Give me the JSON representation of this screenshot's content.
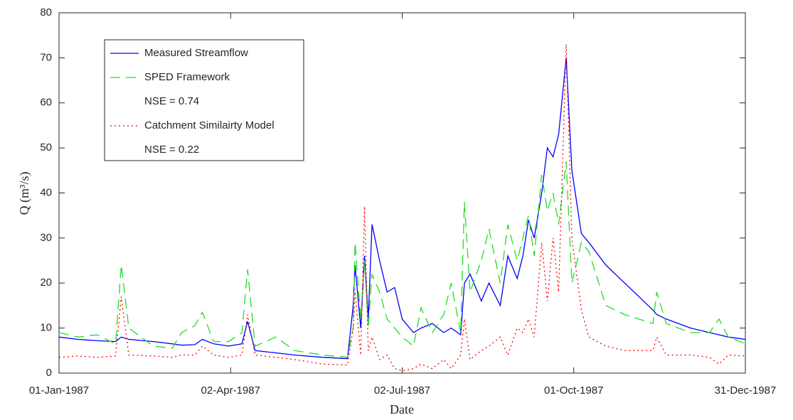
{
  "chart_data": {
    "type": "line",
    "xlabel": "Date",
    "ylabel": "Q (m³/s)",
    "x": [
      "1987-01-01",
      "1987-01-11",
      "1987-01-21",
      "1987-01-31",
      "1987-02-03",
      "1987-02-07",
      "1987-02-20",
      "1987-03-02",
      "1987-03-07",
      "1987-03-14",
      "1987-03-18",
      "1987-03-24",
      "1987-04-01",
      "1987-04-08",
      "1987-04-11",
      "1987-04-15",
      "1987-04-26",
      "1987-05-06",
      "1987-05-21",
      "1987-06-03",
      "1987-06-06",
      "1987-06-07",
      "1987-06-10",
      "1987-06-12",
      "1987-06-14",
      "1987-06-16",
      "1987-06-20",
      "1987-06-24",
      "1987-06-28",
      "1987-07-02",
      "1987-07-08",
      "1987-07-12",
      "1987-07-18",
      "1987-07-24",
      "1987-07-28",
      "1987-08-02",
      "1987-08-04",
      "1987-08-07",
      "1987-08-13",
      "1987-08-17",
      "1987-08-23",
      "1987-08-27",
      "1987-09-01",
      "1987-09-04",
      "1987-09-07",
      "1987-09-10",
      "1987-09-14",
      "1987-09-17",
      "1987-09-20",
      "1987-09-23",
      "1987-09-27",
      "1987-09-30",
      "1987-10-05",
      "1987-10-09",
      "1987-10-18",
      "1987-10-28",
      "1987-11-12",
      "1987-11-14",
      "1987-11-19",
      "1987-12-02",
      "1987-12-12",
      "1987-12-17",
      "1987-12-22",
      "1987-12-31"
    ],
    "series": [
      {
        "name": "Measured Streamflow",
        "color": "#0000ff",
        "dash": "none",
        "values": [
          8,
          7.5,
          7.2,
          7,
          8,
          7.5,
          7,
          6.5,
          6.2,
          6.3,
          7.5,
          6.5,
          6,
          6.5,
          11.5,
          5,
          4.5,
          4,
          3.5,
          3.2,
          15,
          24,
          10,
          26,
          12,
          33,
          25,
          18,
          19,
          12,
          9,
          10,
          11,
          9,
          10,
          8.5,
          20,
          22,
          16,
          20,
          15,
          26,
          21,
          26,
          34,
          30,
          40,
          50,
          48,
          53,
          70,
          45,
          31,
          29,
          24,
          20,
          14,
          13,
          12,
          10,
          9,
          8.5,
          8,
          7.5
        ]
      },
      {
        "name": "SPED Framework",
        "note": "NSE = 0.74",
        "color": "#22dd22",
        "dash": "14 8",
        "values": [
          9,
          8,
          8.5,
          6.5,
          24,
          10,
          6,
          5.5,
          9,
          10.5,
          13.5,
          7,
          7,
          9,
          23,
          6,
          8,
          5,
          4,
          3.5,
          10,
          29,
          12,
          25,
          10,
          22,
          18,
          12,
          10,
          8,
          6,
          14.5,
          9,
          13,
          20,
          9,
          38,
          18,
          25,
          32,
          20,
          33,
          25,
          30,
          35,
          26,
          44,
          36,
          40,
          33,
          47,
          20,
          29,
          27,
          15,
          13,
          11,
          18,
          11,
          9,
          9,
          12,
          8,
          6.5
        ]
      },
      {
        "name": "Catchment Similairty Model",
        "note": "NSE = 0.22",
        "color": "#ff0000",
        "dash": "2 4",
        "values": [
          3.5,
          3.8,
          3.5,
          3.8,
          17,
          4,
          3.8,
          3.5,
          4,
          4,
          6,
          4,
          3.5,
          4,
          13,
          4,
          3.5,
          3,
          2,
          1.8,
          10,
          18,
          4,
          37,
          5,
          8,
          3,
          4,
          1,
          0.5,
          1,
          2,
          1,
          3,
          1,
          4,
          12,
          3,
          5,
          6,
          8,
          4,
          10,
          9,
          12,
          8,
          29,
          16,
          30,
          18,
          73,
          30,
          14,
          8,
          6,
          5,
          5,
          8,
          4,
          4,
          3.5,
          2,
          4,
          3.8
        ]
      }
    ],
    "xlim": [
      "1987-01-01",
      "1987-12-31"
    ],
    "xticks": [
      {
        "value": "1987-01-01",
        "label": "01-Jan-1987"
      },
      {
        "value": "1987-04-02",
        "label": "02-Apr-1987"
      },
      {
        "value": "1987-07-02",
        "label": "02-Jul-1987"
      },
      {
        "value": "1987-10-01",
        "label": "01-Oct-1987"
      },
      {
        "value": "1987-12-31",
        "label": "31-Dec-1987"
      }
    ],
    "ylim": [
      0,
      80
    ],
    "yticks": [
      0,
      10,
      20,
      30,
      40,
      50,
      60,
      70,
      80
    ],
    "legend": "upper left",
    "grid": false
  }
}
